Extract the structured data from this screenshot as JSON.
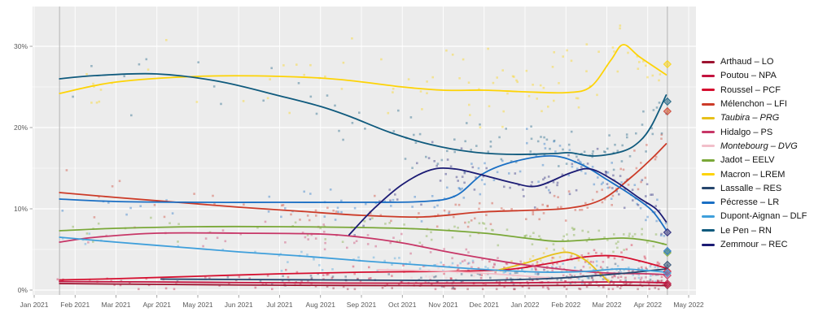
{
  "chart_data": {
    "type": "scatter",
    "title": "",
    "x_axis": {
      "tick_labels": [
        "Jan 2021",
        "Feb 2021",
        "Mar 2021",
        "Apr 2021",
        "May 2021",
        "Jun 2021",
        "Jul 2021",
        "Aug 2021",
        "Sep 2021",
        "Oct 2021",
        "Nov 2021",
        "Dec 2021",
        "Jan 2022",
        "Feb 2022",
        "Mar 2022",
        "Apr 2022",
        "May 2022"
      ],
      "month_index_range": [
        0,
        16
      ]
    },
    "y_axis": {
      "tick_labels": [
        "0%",
        "10%",
        "20%",
        "30%"
      ],
      "tick_values": [
        0,
        10,
        20,
        30
      ],
      "minor_tick_values": [
        5,
        15,
        25
      ],
      "range": [
        -0.6,
        35.5
      ],
      "unit": "%"
    },
    "grid": "on",
    "legend_position": "right",
    "panel_background": "#ececec",
    "gridline_color": "#ffffff",
    "reference_line_color": "#b9b9b9",
    "axis_text_color": "#5a5a5a",
    "reference_lines": {
      "poll_start_month": 0.62,
      "election_month": 15.48
    },
    "series": [
      {
        "candidate": "Arthaud",
        "party": "LO",
        "label": "Arthaud – LO",
        "slug": "arthaud",
        "color": "#9d1330",
        "italic": false,
        "result": 0.6,
        "trend": [
          [
            0.62,
            0.8
          ],
          [
            3,
            0.7
          ],
          [
            6,
            0.6
          ],
          [
            9,
            0.55
          ],
          [
            12,
            0.55
          ],
          [
            14,
            0.6
          ],
          [
            15.45,
            0.55
          ]
        ]
      },
      {
        "candidate": "Poutou",
        "party": "NPA",
        "label": "Poutou – NPA",
        "slug": "poutou",
        "color": "#c3133f",
        "italic": false,
        "result": 0.8,
        "trend": [
          [
            0.62,
            1.05
          ],
          [
            3,
            1.0
          ],
          [
            6,
            0.9
          ],
          [
            9,
            0.85
          ],
          [
            12,
            0.9
          ],
          [
            14,
            1.0
          ],
          [
            15.45,
            0.9
          ]
        ]
      },
      {
        "candidate": "Roussel",
        "party": "PCF",
        "label": "Roussel – PCF",
        "slug": "roussel",
        "color": "#d50f2f",
        "italic": false,
        "result": 2.3,
        "trend": [
          [
            0.62,
            1.25
          ],
          [
            2,
            1.4
          ],
          [
            4,
            1.7
          ],
          [
            6,
            2.0
          ],
          [
            8,
            2.2
          ],
          [
            10,
            2.3
          ],
          [
            11.5,
            2.5
          ],
          [
            12.5,
            3.2
          ],
          [
            13.5,
            4.1
          ],
          [
            14.2,
            4.2
          ],
          [
            14.8,
            3.6
          ],
          [
            15.45,
            2.7
          ]
        ]
      },
      {
        "candidate": "Mélenchon",
        "party": "LFI",
        "label": "Mélenchon – LFI",
        "slug": "melenchon",
        "color": "#cc3b28",
        "italic": false,
        "result": 22.0,
        "trend": [
          [
            0.62,
            12.0
          ],
          [
            2,
            11.4
          ],
          [
            3.5,
            10.8
          ],
          [
            5,
            10.2
          ],
          [
            6.5,
            9.7
          ],
          [
            8,
            9.2
          ],
          [
            9.5,
            9.0
          ],
          [
            10.9,
            9.6
          ],
          [
            12,
            9.8
          ],
          [
            13.1,
            10.1
          ],
          [
            13.9,
            11.2
          ],
          [
            14.6,
            13.9
          ],
          [
            15.1,
            16.2
          ],
          [
            15.45,
            18.0
          ]
        ]
      },
      {
        "candidate": "Taubira",
        "party": "PRG",
        "label": "Taubira – PRG",
        "slug": "taubira",
        "color": "#e7c019",
        "italic": true,
        "result": null,
        "trend": [
          [
            11.3,
            2.4
          ],
          [
            12.0,
            3.3
          ],
          [
            12.7,
            4.4
          ],
          [
            13.1,
            4.6
          ],
          [
            13.5,
            3.6
          ],
          [
            13.8,
            2.2
          ],
          [
            14.05,
            1.0
          ]
        ]
      },
      {
        "candidate": "Hidalgo",
        "party": "PS",
        "label": "Hidalgo – PS",
        "slug": "hidalgo",
        "color": "#c73667",
        "italic": false,
        "result": 1.8,
        "trend": [
          [
            0.62,
            5.9
          ],
          [
            1.5,
            6.5
          ],
          [
            3,
            7.0
          ],
          [
            5,
            7.0
          ],
          [
            7,
            6.9
          ],
          [
            8,
            6.5
          ],
          [
            9,
            5.8
          ],
          [
            10,
            4.8
          ],
          [
            11,
            3.9
          ],
          [
            12,
            3.1
          ],
          [
            13,
            2.5
          ],
          [
            14,
            2.1
          ],
          [
            15,
            2.0
          ],
          [
            15.45,
            1.9
          ]
        ]
      },
      {
        "candidate": "Montebourg",
        "party": "DVG",
        "label": "Montebourg – DVG",
        "slug": "montebourg",
        "color": "#f2bfca",
        "italic": true,
        "result": null,
        "trend": [
          [
            8.4,
            2.5
          ],
          [
            9.5,
            2.4
          ],
          [
            10.5,
            2.2
          ],
          [
            11.5,
            1.9
          ],
          [
            12.6,
            1.5
          ]
        ]
      },
      {
        "candidate": "Jadot",
        "party": "EELV",
        "label": "Jadot – EELV",
        "slug": "jadot",
        "color": "#7aa838",
        "italic": false,
        "result": 4.6,
        "trend": [
          [
            0.62,
            7.3
          ],
          [
            2,
            7.6
          ],
          [
            4,
            7.8
          ],
          [
            6,
            7.8
          ],
          [
            8,
            7.7
          ],
          [
            9.5,
            7.5
          ],
          [
            11,
            7.0
          ],
          [
            12,
            6.4
          ],
          [
            12.8,
            6.0
          ],
          [
            13.6,
            6.2
          ],
          [
            14.4,
            6.4
          ],
          [
            15,
            6.1
          ],
          [
            15.45,
            5.6
          ]
        ]
      },
      {
        "candidate": "Macron",
        "party": "LREM",
        "label": "Macron – LREM",
        "slug": "macron",
        "color": "#fdd306",
        "italic": false,
        "result": 27.8,
        "trend": [
          [
            0.62,
            24.2
          ],
          [
            2,
            25.6
          ],
          [
            4,
            26.3
          ],
          [
            6,
            26.3
          ],
          [
            7.5,
            25.9
          ],
          [
            9,
            25.0
          ],
          [
            10,
            24.6
          ],
          [
            11,
            24.6
          ],
          [
            12,
            24.4
          ],
          [
            13,
            24.3
          ],
          [
            13.6,
            25.0
          ],
          [
            14.1,
            28.3
          ],
          [
            14.4,
            30.2
          ],
          [
            14.8,
            28.7
          ],
          [
            15.45,
            26.5
          ]
        ]
      },
      {
        "candidate": "Lassalle",
        "party": "RES",
        "label": "Lassalle – RES",
        "slug": "lassalle",
        "color": "#26466d",
        "italic": false,
        "result": 3.1,
        "trend": [
          [
            3.1,
            1.35
          ],
          [
            5,
            1.3
          ],
          [
            7,
            1.25
          ],
          [
            9,
            1.2
          ],
          [
            11,
            1.2
          ],
          [
            12.5,
            1.4
          ],
          [
            13.5,
            1.7
          ],
          [
            14.5,
            2.1
          ],
          [
            15.45,
            2.6
          ]
        ]
      },
      {
        "candidate": "Pécresse",
        "party": "LR",
        "label": "Pécresse – LR",
        "slug": "pecresse",
        "color": "#1a6fc4",
        "italic": false,
        "result": 4.8,
        "trend": [
          [
            0.62,
            11.2
          ],
          [
            2,
            10.9
          ],
          [
            4,
            10.8
          ],
          [
            6,
            10.8
          ],
          [
            8,
            10.8
          ],
          [
            9.5,
            10.9
          ],
          [
            10.3,
            11.6
          ],
          [
            11,
            14.4
          ],
          [
            11.8,
            15.9
          ],
          [
            12.7,
            16.5
          ],
          [
            13.4,
            15.4
          ],
          [
            14,
            13.6
          ],
          [
            14.6,
            11.7
          ],
          [
            15.1,
            9.8
          ],
          [
            15.45,
            7.4
          ]
        ]
      },
      {
        "candidate": "Dupont-Aignan",
        "party": "DLF",
        "label": "Dupont-Aignan – DLF",
        "slug": "dupont-aignan",
        "color": "#3f9fdb",
        "italic": false,
        "result": 2.1,
        "trend": [
          [
            0.62,
            6.5
          ],
          [
            2,
            5.9
          ],
          [
            3.5,
            5.3
          ],
          [
            5,
            4.7
          ],
          [
            6.5,
            4.2
          ],
          [
            8,
            3.6
          ],
          [
            9.4,
            3.1
          ],
          [
            10.5,
            2.7
          ],
          [
            11.5,
            2.4
          ],
          [
            12.5,
            2.2
          ],
          [
            13.5,
            2.3
          ],
          [
            14.3,
            2.6
          ],
          [
            15,
            2.4
          ],
          [
            15.45,
            2.2
          ]
        ]
      },
      {
        "candidate": "Le Pen",
        "party": "RN",
        "label": "Le Pen – RN",
        "slug": "le-pen",
        "color": "#0f5a7d",
        "italic": false,
        "result": 23.2,
        "trend": [
          [
            0.62,
            26.0
          ],
          [
            1.5,
            26.4
          ],
          [
            3,
            26.6
          ],
          [
            4.5,
            25.7
          ],
          [
            6,
            23.9
          ],
          [
            7,
            22.6
          ],
          [
            7.7,
            21.4
          ],
          [
            8.7,
            19.4
          ],
          [
            9.7,
            17.9
          ],
          [
            10.7,
            17.0
          ],
          [
            11.7,
            16.7
          ],
          [
            12.7,
            16.8
          ],
          [
            13.1,
            16.9
          ],
          [
            13.7,
            16.5
          ],
          [
            14.4,
            17.1
          ],
          [
            14.8,
            18.3
          ],
          [
            15.1,
            20.3
          ],
          [
            15.45,
            24.0
          ]
        ]
      },
      {
        "candidate": "Zemmour",
        "party": "REC",
        "label": "Zemmour – REC",
        "slug": "zemmour",
        "color": "#1b1b74",
        "italic": false,
        "result": 7.1,
        "trend": [
          [
            7.7,
            6.8
          ],
          [
            8.3,
            10.0
          ],
          [
            9,
            13.0
          ],
          [
            9.7,
            14.8
          ],
          [
            10.3,
            14.9
          ],
          [
            11,
            14.1
          ],
          [
            11.7,
            13.2
          ],
          [
            12.3,
            12.8
          ],
          [
            13.1,
            14.4
          ],
          [
            13.6,
            14.9
          ],
          [
            14.2,
            13.4
          ],
          [
            14.8,
            11.3
          ],
          [
            15.2,
            10.0
          ],
          [
            15.45,
            8.4
          ]
        ]
      }
    ]
  }
}
